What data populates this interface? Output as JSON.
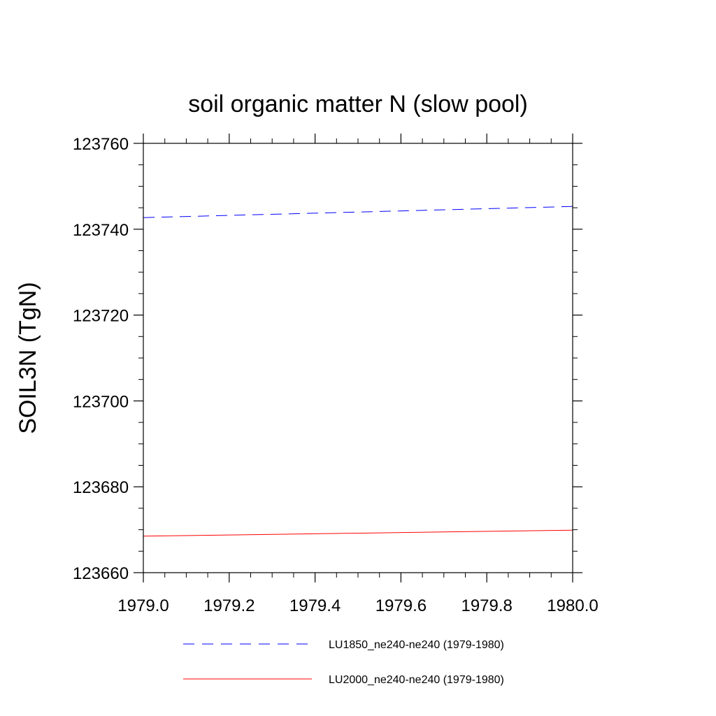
{
  "chart_data": {
    "type": "line",
    "title": "soil organic matter N (slow pool)",
    "xlabel": "",
    "ylabel": "SOIL3N  (TgN)",
    "xlim": [
      1979.0,
      1980.0
    ],
    "ylim": [
      123660,
      123760
    ],
    "x_ticks": [
      "1979.0",
      "1979.2",
      "1979.4",
      "1979.6",
      "1979.8",
      "1980.0"
    ],
    "y_ticks": [
      "123660",
      "123680",
      "123700",
      "123720",
      "123740",
      "123760"
    ],
    "legend_position": "bottom",
    "grid": false,
    "series": [
      {
        "name": "LU1850_ne240-ne240 (1979-1980)",
        "color": "#0000ff",
        "style": "dashed",
        "x": [
          1979.0,
          1980.0
        ],
        "y": [
          123742.7,
          123745.3
        ]
      },
      {
        "name": "LU2000_ne240-ne240 (1979-1980)",
        "color": "#ff0000",
        "style": "solid",
        "x": [
          1979.0,
          1980.0
        ],
        "y": [
          123668.5,
          123669.9
        ]
      }
    ]
  }
}
